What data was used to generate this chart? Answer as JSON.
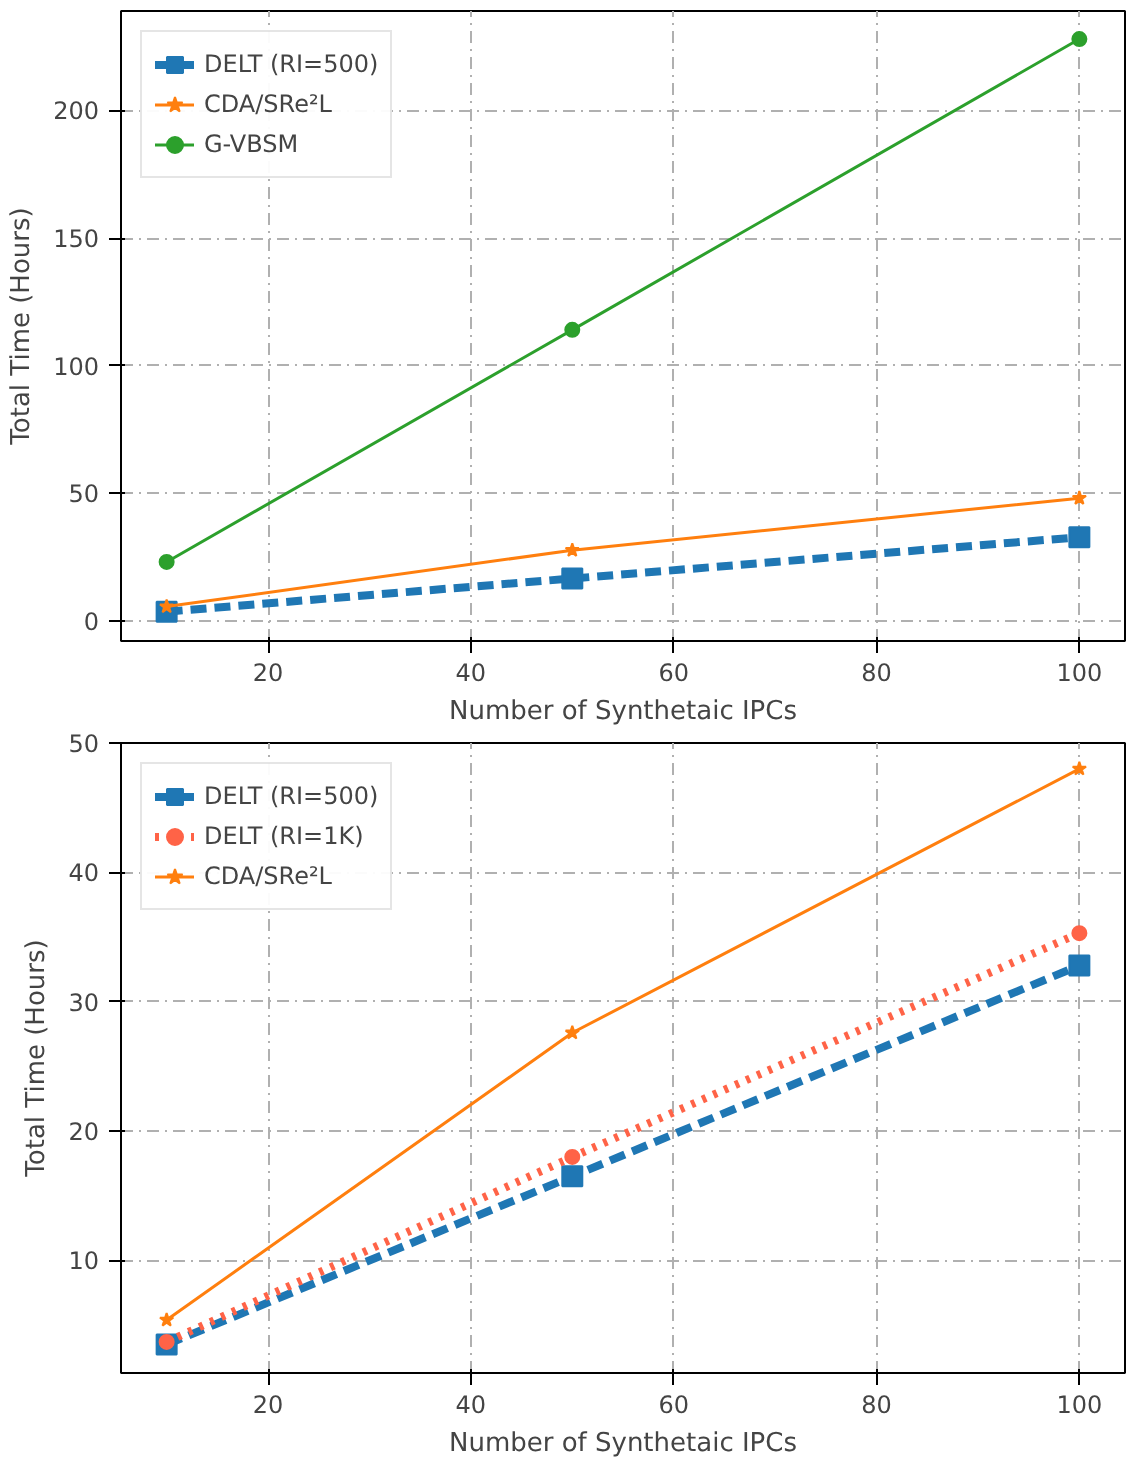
{
  "chart_data": [
    {
      "type": "line",
      "xlabel": "Number of Synthetaic IPCs",
      "ylabel": "Total Time (Hours)",
      "x": [
        10,
        50,
        100
      ],
      "xlim": [
        5.5,
        104.5
      ],
      "ylim": [
        -8,
        239
      ],
      "xticks": [
        20,
        40,
        60,
        80,
        100
      ],
      "yticks": [
        0,
        50,
        100,
        150,
        200
      ],
      "grid": true,
      "legend": "top left",
      "series": [
        {
          "name": "DELT (RI=500)",
          "color": "#1f77b4",
          "values": [
            3.5,
            16.5,
            32.7
          ],
          "marker": "square",
          "line_style": "dashed"
        },
        {
          "name": "CDA/SRe²L",
          "color": "#ff7f0e",
          "values": [
            5.5,
            27.6,
            48
          ],
          "marker": "star",
          "line_style": "solid"
        },
        {
          "name": "G-VBSM",
          "color": "#2ca02c",
          "values": [
            23,
            114,
            228
          ],
          "marker": "circle",
          "line_style": "solid"
        }
      ]
    },
    {
      "type": "line",
      "xlabel": "Number of Synthetaic IPCs",
      "ylabel": "Total Time (Hours)",
      "x": [
        10,
        50,
        100
      ],
      "xlim": [
        5.5,
        104.5
      ],
      "ylim": [
        1.3,
        50
      ],
      "xticks": [
        20,
        40,
        60,
        80,
        100
      ],
      "yticks": [
        10,
        20,
        30,
        40,
        50
      ],
      "grid": true,
      "legend": "top left",
      "series": [
        {
          "name": "DELT (RI=500)",
          "color": "#1f77b4",
          "values": [
            3.5,
            16.5,
            32.8
          ],
          "marker": "square",
          "line_style": "dashed"
        },
        {
          "name": "DELT (RI=1K)",
          "color": "#ff6347",
          "values": [
            3.7,
            18,
            35.3
          ],
          "marker": "circle",
          "line_style": "dotted"
        },
        {
          "name": "CDA/SRe²L",
          "color": "#ff7f0e",
          "values": [
            5.4,
            27.6,
            48
          ],
          "marker": "star",
          "line_style": "solid"
        }
      ]
    }
  ]
}
